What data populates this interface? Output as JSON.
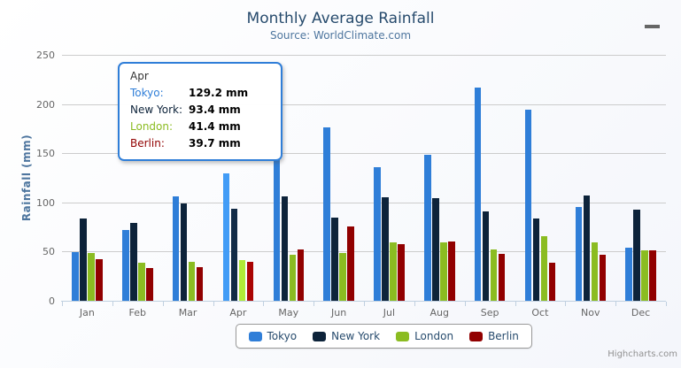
{
  "chart_data": {
    "type": "bar",
    "title": "Monthly Average Rainfall",
    "subtitle": "Source: WorldClimate.com",
    "xlabel": "",
    "ylabel": "Rainfall (mm)",
    "ylim": [
      0,
      250
    ],
    "yticks": [
      0,
      50,
      100,
      150,
      200,
      250
    ],
    "grid": true,
    "legend_position": "bottom",
    "categories": [
      "Jan",
      "Feb",
      "Mar",
      "Apr",
      "May",
      "Jun",
      "Jul",
      "Aug",
      "Sep",
      "Oct",
      "Nov",
      "Dec"
    ],
    "series": [
      {
        "name": "Tokyo",
        "color": "#2f7ed8",
        "values": [
          49.9,
          71.5,
          106.4,
          129.2,
          144.0,
          176.0,
          135.6,
          148.5,
          216.4,
          194.1,
          95.6,
          54.4
        ]
      },
      {
        "name": "New York",
        "color": "#0d233a",
        "values": [
          83.6,
          78.8,
          98.5,
          93.4,
          106.0,
          84.5,
          105.0,
          104.3,
          91.2,
          83.5,
          106.6,
          92.3
        ]
      },
      {
        "name": "London",
        "color": "#8bbc21",
        "values": [
          48.9,
          38.8,
          39.3,
          41.4,
          47.0,
          48.3,
          59.0,
          59.6,
          52.4,
          65.2,
          59.3,
          51.2
        ]
      },
      {
        "name": "Berlin",
        "color": "#910000",
        "values": [
          42.4,
          33.2,
          34.5,
          39.7,
          52.6,
          75.5,
          57.4,
          60.4,
          47.6,
          39.1,
          46.8,
          51.1
        ]
      }
    ]
  },
  "tooltip": {
    "hovered_category": "Apr",
    "header": "Apr",
    "rows": [
      {
        "series": "Tokyo",
        "label": "Tokyo:",
        "value": "129.2 mm"
      },
      {
        "series": "New York",
        "label": "New York:",
        "value": "93.4 mm"
      },
      {
        "series": "London",
        "label": "London:",
        "value": "41.4 mm"
      },
      {
        "series": "Berlin",
        "label": "Berlin:",
        "value": "39.7 mm"
      }
    ],
    "border_color": "#2f7ed8"
  },
  "credits": {
    "label": "Highcharts.com"
  },
  "menu": {
    "icon": "hamburger-icon"
  }
}
